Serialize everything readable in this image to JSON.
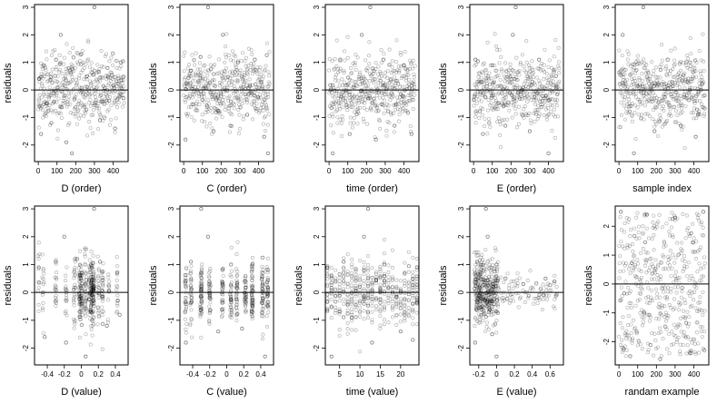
{
  "chart_data": [
    {
      "type": "scatter",
      "xlabel": "D (order)",
      "ylabel": "residuals",
      "xlim": [
        -20,
        480
      ],
      "ylim": [
        -2.6,
        3.1
      ],
      "xticks": [
        0,
        100,
        200,
        300,
        400
      ],
      "yticks": [
        -2,
        -1,
        0,
        1,
        2,
        3
      ],
      "hline": 0,
      "seed": 11,
      "n": 460,
      "pattern": "order",
      "values": [
        [
          5,
          0.4
        ],
        [
          15,
          -1.6
        ],
        [
          28,
          0.9
        ],
        [
          42,
          -0.5
        ],
        [
          70,
          -1.2
        ],
        [
          95,
          1.1
        ],
        [
          120,
          2.0
        ],
        [
          150,
          -1.9
        ],
        [
          180,
          -2.3
        ],
        [
          230,
          1.3
        ],
        [
          260,
          0.5
        ],
        [
          300,
          3.0
        ],
        [
          330,
          -1.1
        ],
        [
          370,
          0.8
        ],
        [
          410,
          -1.4
        ],
        [
          440,
          1.0
        ],
        [
          455,
          -0.3
        ]
      ]
    },
    {
      "type": "scatter",
      "xlabel": "C (order)",
      "ylabel": "residuals",
      "xlim": [
        -20,
        480
      ],
      "ylim": [
        -2.6,
        3.1
      ],
      "xticks": [
        0,
        100,
        200,
        300,
        400
      ],
      "yticks": [
        -2,
        -1,
        0,
        1,
        2,
        3
      ],
      "hline": 0,
      "seed": 23,
      "n": 460,
      "pattern": "order",
      "values": [
        [
          10,
          -1.8
        ],
        [
          40,
          0.7
        ],
        [
          90,
          1.2
        ],
        [
          130,
          3.0
        ],
        [
          160,
          -1.5
        ],
        [
          210,
          2.0
        ],
        [
          250,
          -1.3
        ],
        [
          290,
          1.0
        ],
        [
          340,
          -0.9
        ],
        [
          380,
          1.1
        ],
        [
          430,
          -1.7
        ],
        [
          450,
          -2.3
        ]
      ]
    },
    {
      "type": "scatter",
      "xlabel": "time (order)",
      "ylabel": "residuals",
      "xlim": [
        -20,
        480
      ],
      "ylim": [
        -2.6,
        3.1
      ],
      "xticks": [
        0,
        100,
        200,
        300,
        400
      ],
      "yticks": [
        -2,
        -1,
        0,
        1,
        2,
        3
      ],
      "hline": 0,
      "seed": 37,
      "n": 460,
      "pattern": "order",
      "values": [
        [
          20,
          -2.3
        ],
        [
          60,
          1.1
        ],
        [
          110,
          -1.6
        ],
        [
          175,
          2.0
        ],
        [
          220,
          3.0
        ],
        [
          250,
          -1.8
        ],
        [
          290,
          1.1
        ],
        [
          350,
          -1.3
        ],
        [
          400,
          0.9
        ],
        [
          440,
          -1.6
        ]
      ]
    },
    {
      "type": "scatter",
      "xlabel": "E (order)",
      "ylabel": "residuals",
      "xlim": [
        -20,
        480
      ],
      "ylim": [
        -2.6,
        3.1
      ],
      "xticks": [
        0,
        100,
        200,
        300,
        400
      ],
      "yticks": [
        -2,
        -1,
        0,
        1,
        2,
        3
      ],
      "hline": 0,
      "seed": 41,
      "n": 460,
      "pattern": "order",
      "values": [
        [
          10,
          1.1
        ],
        [
          50,
          -1.6
        ],
        [
          100,
          0.9
        ],
        [
          170,
          -1.3
        ],
        [
          210,
          2.0
        ],
        [
          225,
          3.0
        ],
        [
          300,
          -1.5
        ],
        [
          350,
          1.1
        ],
        [
          400,
          -2.3
        ],
        [
          440,
          0.5
        ]
      ]
    },
    {
      "type": "scatter",
      "xlabel": "sample index",
      "ylabel": "residuals",
      "xlim": [
        -20,
        480
      ],
      "ylim": [
        -2.6,
        3.1
      ],
      "xticks": [
        0,
        100,
        200,
        300,
        400
      ],
      "yticks": [
        -2,
        -1,
        0,
        1,
        2,
        3
      ],
      "hline": 0,
      "seed": 53,
      "n": 460,
      "pattern": "order",
      "values": [
        [
          20,
          2.0
        ],
        [
          80,
          -2.3
        ],
        [
          130,
          3.0
        ],
        [
          190,
          -1.5
        ],
        [
          260,
          1.1
        ],
        [
          330,
          -1.3
        ],
        [
          380,
          1.0
        ],
        [
          410,
          -1.7
        ]
      ]
    },
    {
      "type": "scatter",
      "xlabel": "D (value)",
      "ylabel": "residuals",
      "xlim": [
        -0.55,
        0.55
      ],
      "ylim": [
        -2.6,
        3.1
      ],
      "xticks": [
        -0.4,
        -0.2,
        0.0,
        0.2,
        0.4
      ],
      "yticks": [
        -2,
        -1,
        0,
        1,
        2,
        3
      ],
      "hline": 0,
      "seed": 61,
      "n": 460,
      "pattern": "dval",
      "values": [
        [
          -0.5,
          0.9
        ],
        [
          -0.43,
          -1.6
        ],
        [
          -0.3,
          1.1
        ],
        [
          -0.2,
          2.0
        ],
        [
          -0.18,
          -1.8
        ],
        [
          -0.05,
          1.2
        ],
        [
          0.05,
          -2.3
        ],
        [
          0.15,
          3.0
        ],
        [
          0.22,
          1.1
        ],
        [
          0.3,
          -1.2
        ],
        [
          0.42,
          0.7
        ],
        [
          0.45,
          -0.8
        ]
      ]
    },
    {
      "type": "scatter",
      "xlabel": "C (value)",
      "ylabel": "residuals",
      "xlim": [
        -0.55,
        0.55
      ],
      "ylim": [
        -2.6,
        3.1
      ],
      "xticks": [
        -0.4,
        -0.2,
        0.0,
        0.2,
        0.4
      ],
      "yticks": [
        -2,
        -1,
        0,
        1,
        2,
        3
      ],
      "hline": 0,
      "seed": 71,
      "n": 460,
      "pattern": "cval",
      "values": [
        [
          -0.48,
          -1.8
        ],
        [
          -0.42,
          1.1
        ],
        [
          -0.3,
          3.0
        ],
        [
          -0.22,
          2.0
        ],
        [
          -0.1,
          -1.4
        ],
        [
          0.05,
          1.0
        ],
        [
          0.18,
          -1.3
        ],
        [
          0.3,
          1.0
        ],
        [
          0.45,
          -2.3
        ]
      ]
    },
    {
      "type": "scatter",
      "xlabel": "time (value)",
      "ylabel": "residuals",
      "xlim": [
        1.5,
        24.5
      ],
      "ylim": [
        -2.6,
        3.1
      ],
      "xticks": [
        5,
        10,
        15,
        20
      ],
      "yticks": [
        -2,
        -1,
        0,
        1,
        2,
        3
      ],
      "hline": 0,
      "seed": 83,
      "n": 460,
      "pattern": "tval",
      "values": [
        [
          2,
          0.9
        ],
        [
          3,
          -2.3
        ],
        [
          6,
          1.1
        ],
        [
          11,
          2.0
        ],
        [
          12,
          3.0
        ],
        [
          13,
          -1.8
        ],
        [
          16,
          1.0
        ],
        [
          20,
          -1.4
        ],
        [
          23,
          -1.7
        ],
        [
          24,
          0.9
        ]
      ]
    },
    {
      "type": "scatter",
      "xlabel": "E (value)",
      "ylabel": "residuals",
      "xlim": [
        -0.3,
        0.75
      ],
      "ylim": [
        -2.6,
        3.1
      ],
      "xticks": [
        -0.2,
        0.0,
        0.2,
        0.4,
        0.6
      ],
      "yticks": [
        -2,
        -1,
        0,
        1,
        2,
        3
      ],
      "hline": 0,
      "seed": 97,
      "n": 460,
      "pattern": "eval",
      "values": [
        [
          -0.24,
          -1.8
        ],
        [
          -0.22,
          1.1
        ],
        [
          -0.12,
          3.0
        ],
        [
          -0.1,
          2.0
        ],
        [
          -0.05,
          -1.5
        ],
        [
          0.0,
          1.0
        ],
        [
          0.0,
          -2.3
        ],
        [
          0.1,
          0.5
        ],
        [
          0.3,
          0.3
        ],
        [
          0.55,
          0.5
        ],
        [
          0.65,
          0.4
        ]
      ]
    },
    {
      "type": "scatter",
      "xlabel": "randam example",
      "ylabel": "residuals",
      "xlim": [
        -20,
        480
      ],
      "ylim": [
        -2.8,
        2.7
      ],
      "xticks": [
        0,
        100,
        200,
        300,
        400
      ],
      "yticks": [
        -2,
        -1,
        0,
        1,
        2
      ],
      "hline": 0,
      "seed": 101,
      "n": 460,
      "pattern": "uniform",
      "values": [
        [
          10,
          2.5
        ],
        [
          60,
          -2.5
        ],
        [
          150,
          2.4
        ],
        [
          220,
          -2.6
        ],
        [
          300,
          2.3
        ],
        [
          380,
          -2.4
        ],
        [
          450,
          2.5
        ]
      ]
    }
  ]
}
